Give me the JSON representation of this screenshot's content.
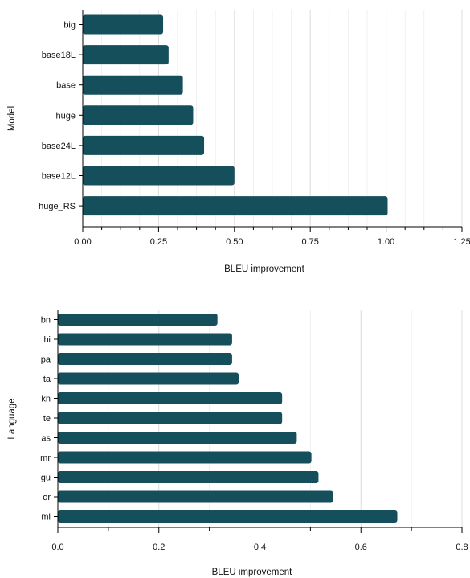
{
  "colors": {
    "bar": "#164f5c",
    "grid": "#dcdcdc",
    "axis": "#000000"
  },
  "chart_data": [
    {
      "type": "bar",
      "orientation": "horizontal",
      "xlabel": "BLEU improvement",
      "ylabel": "Model",
      "xlim": [
        0,
        1.25
      ],
      "xticks": [
        0,
        0.25,
        0.5,
        0.75,
        1.0,
        1.25
      ],
      "xtick_labels": [
        "0.00",
        "0.25",
        "0.50",
        "0.75",
        "1.00",
        "1.25"
      ],
      "categories": [
        "big",
        "base18L",
        "base",
        "huge",
        "base24L",
        "base12L",
        "huge_RS"
      ],
      "values": [
        0.265,
        0.283,
        0.33,
        0.364,
        0.4,
        0.5,
        1.005
      ],
      "grid": true
    },
    {
      "type": "bar",
      "orientation": "horizontal",
      "xlabel": "BLEU improvement",
      "ylabel": "Language",
      "xlim": [
        0,
        0.8
      ],
      "xticks": [
        0,
        0.2,
        0.4,
        0.6,
        0.8
      ],
      "xtick_labels": [
        "0.0",
        "0.2",
        "0.4",
        "0.6",
        "0.8"
      ],
      "categories": [
        "bn",
        "hi",
        "pa",
        "ta",
        "kn",
        "te",
        "as",
        "mr",
        "gu",
        "or",
        "ml"
      ],
      "values": [
        0.316,
        0.345,
        0.345,
        0.358,
        0.444,
        0.444,
        0.473,
        0.502,
        0.516,
        0.545,
        0.672
      ],
      "grid": true
    }
  ]
}
